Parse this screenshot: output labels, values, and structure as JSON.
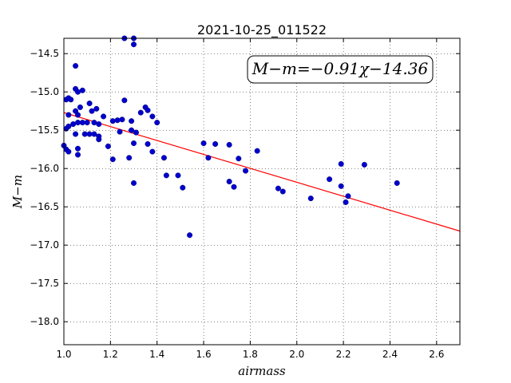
{
  "chart_data": {
    "type": "scatter",
    "title": "2021-10-25_011522",
    "xlabel": "airmass",
    "ylabel": "M−m",
    "xlim": [
      1.0,
      2.7
    ],
    "ylim": [
      -14.3,
      -18.3
    ],
    "y_inverted": true,
    "grid": true,
    "x_ticks": [
      "1.0",
      "1.2",
      "1.4",
      "1.6",
      "1.8",
      "2.0",
      "2.2",
      "2.4",
      "2.6"
    ],
    "y_ticks": [
      "−14.5",
      "−15.0",
      "−15.5",
      "−16.0",
      "−16.5",
      "−17.0",
      "−17.5",
      "−18.0"
    ],
    "annotation": "M−m=−0.91χ−14.36",
    "fit_line": {
      "slope": -0.91,
      "intercept": -14.36,
      "color": "#ff0000"
    },
    "point_color": "#0000cc",
    "points": [
      [
        1.01,
        -15.1
      ],
      [
        1.02,
        -15.08
      ],
      [
        1.03,
        -15.1
      ],
      [
        1.02,
        -15.3
      ],
      [
        1.02,
        -15.45
      ],
      [
        1.01,
        -15.48
      ],
      [
        1.0,
        -15.7
      ],
      [
        1.01,
        -15.75
      ],
      [
        1.02,
        -15.78
      ],
      [
        1.04,
        -15.42
      ],
      [
        1.05,
        -14.66
      ],
      [
        1.05,
        -14.96
      ],
      [
        1.06,
        -15.0
      ],
      [
        1.05,
        -15.25
      ],
      [
        1.06,
        -15.3
      ],
      [
        1.06,
        -15.4
      ],
      [
        1.05,
        -15.55
      ],
      [
        1.06,
        -15.74
      ],
      [
        1.06,
        -15.82
      ],
      [
        1.07,
        -15.2
      ],
      [
        1.08,
        -14.98
      ],
      [
        1.08,
        -15.4
      ],
      [
        1.09,
        -15.55
      ],
      [
        1.1,
        -15.4
      ],
      [
        1.11,
        -15.55
      ],
      [
        1.11,
        -15.15
      ],
      [
        1.12,
        -15.25
      ],
      [
        1.13,
        -15.4
      ],
      [
        1.13,
        -15.55
      ],
      [
        1.14,
        -15.22
      ],
      [
        1.15,
        -15.42
      ],
      [
        1.15,
        -15.58
      ],
      [
        1.15,
        -15.62
      ],
      [
        1.17,
        -15.32
      ],
      [
        1.19,
        -15.71
      ],
      [
        1.21,
        -15.88
      ],
      [
        1.21,
        -15.38
      ],
      [
        1.23,
        -15.37
      ],
      [
        1.24,
        -15.52
      ],
      [
        1.25,
        -15.36
      ],
      [
        1.26,
        -14.3
      ],
      [
        1.26,
        -15.11
      ],
      [
        1.28,
        -15.86
      ],
      [
        1.29,
        -15.38
      ],
      [
        1.29,
        -15.5
      ],
      [
        1.3,
        -14.3
      ],
      [
        1.3,
        -14.38
      ],
      [
        1.3,
        -15.67
      ],
      [
        1.3,
        -16.19
      ],
      [
        1.31,
        -15.53
      ],
      [
        1.33,
        -15.27
      ],
      [
        1.35,
        -15.2
      ],
      [
        1.36,
        -15.24
      ],
      [
        1.36,
        -15.68
      ],
      [
        1.38,
        -15.32
      ],
      [
        1.38,
        -15.78
      ],
      [
        1.4,
        -15.4
      ],
      [
        1.43,
        -15.86
      ],
      [
        1.44,
        -16.09
      ],
      [
        1.49,
        -16.09
      ],
      [
        1.51,
        -16.25
      ],
      [
        1.54,
        -16.87
      ],
      [
        1.6,
        -15.67
      ],
      [
        1.62,
        -15.86
      ],
      [
        1.65,
        -15.68
      ],
      [
        1.71,
        -15.69
      ],
      [
        1.71,
        -16.17
      ],
      [
        1.73,
        -16.24
      ],
      [
        1.75,
        -15.87
      ],
      [
        1.78,
        -16.03
      ],
      [
        1.83,
        -15.77
      ],
      [
        1.92,
        -16.26
      ],
      [
        1.94,
        -16.3
      ],
      [
        2.06,
        -16.39
      ],
      [
        2.14,
        -16.14
      ],
      [
        2.19,
        -15.94
      ],
      [
        2.19,
        -16.23
      ],
      [
        2.21,
        -16.44
      ],
      [
        2.22,
        -16.36
      ],
      [
        2.29,
        -15.95
      ],
      [
        2.43,
        -16.19
      ]
    ]
  }
}
